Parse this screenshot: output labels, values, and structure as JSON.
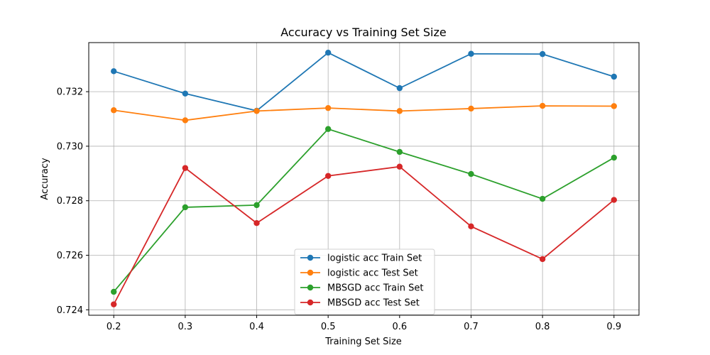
{
  "chart_data": {
    "type": "line",
    "title": "Accuracy vs Training Set Size",
    "xlabel": "Training Set Size",
    "ylabel": "Accuracy",
    "x": [
      0.2,
      0.3,
      0.4,
      0.5,
      0.6,
      0.7,
      0.8,
      0.9
    ],
    "xticks": [
      "0.2",
      "0.3",
      "0.4",
      "0.5",
      "0.6",
      "0.7",
      "0.8",
      "0.9"
    ],
    "yticks": [
      0.724,
      0.726,
      0.728,
      0.73,
      0.732
    ],
    "ytick_labels": [
      "0.724",
      "0.726",
      "0.728",
      "0.730",
      "0.732"
    ],
    "xlim": [
      0.165,
      0.935
    ],
    "ylim": [
      0.7238,
      0.7338
    ],
    "grid": true,
    "legend_position": "bottom-center",
    "series": [
      {
        "name": "logistic acc Train Set",
        "color": "#1f77b4",
        "values": [
          0.73275,
          0.73193,
          0.7313,
          0.73343,
          0.73213,
          0.73339,
          0.73338,
          0.73255
        ]
      },
      {
        "name": "logistic acc Test Set",
        "color": "#ff7f0e",
        "values": [
          0.73132,
          0.73095,
          0.73129,
          0.7314,
          0.73129,
          0.73138,
          0.73148,
          0.73147
        ]
      },
      {
        "name": "MBSGD acc Train Set",
        "color": "#2ca02c",
        "values": [
          0.72466,
          0.72776,
          0.72784,
          0.73063,
          0.72979,
          0.72898,
          0.72807,
          0.72958
        ]
      },
      {
        "name": "MBSGD acc Test Set",
        "color": "#d62728",
        "values": [
          0.7242,
          0.7292,
          0.72718,
          0.72891,
          0.72925,
          0.72706,
          0.72586,
          0.72803
        ]
      }
    ]
  }
}
